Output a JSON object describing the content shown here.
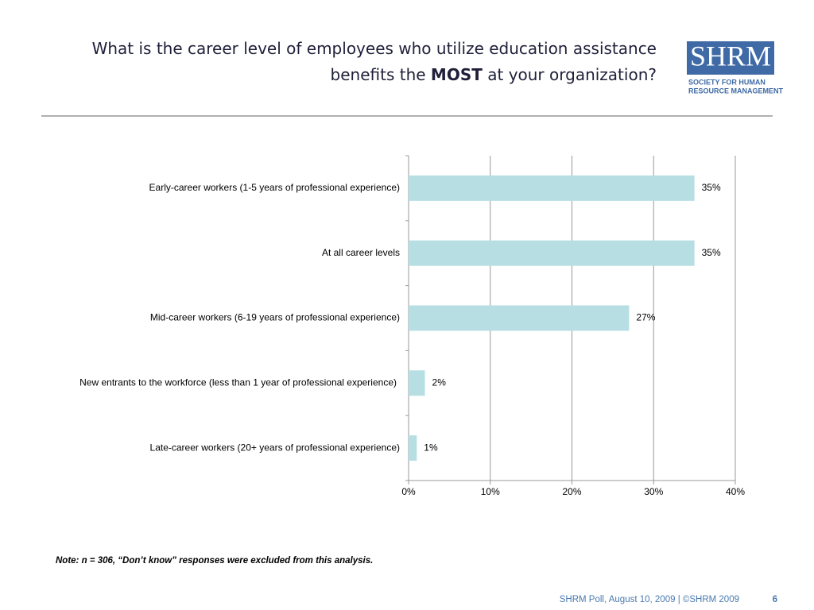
{
  "header": {
    "title_lines": [
      [
        {
          "text": "What is the career level of employees who utilize education assistance",
          "bold": false
        }
      ],
      [
        {
          "text": "benefits the ",
          "bold": false
        },
        {
          "text": "MOST",
          "bold": true
        },
        {
          "text": " at your organization?",
          "bold": false
        }
      ]
    ]
  },
  "logo": {
    "mark": "SHRM",
    "lines": [
      "SOCIETY FOR HUMAN",
      "RESOURCE MANAGEMENT"
    ]
  },
  "chart_data": {
    "type": "hbar",
    "categories": [
      "Early-career workers (1-5 years of professional experience)",
      "At all career levels",
      "Mid-career workers (6-19 years of professional experience)",
      "New entrants to the workforce (less than 1 year of professional experience)",
      "Late-career workers (20+ years of professional experience)"
    ],
    "values": [
      35,
      35,
      27,
      2,
      1
    ],
    "value_labels": [
      "35%",
      "35%",
      "27%",
      "2%",
      "1%"
    ],
    "color": "#b7dfe3",
    "xlim": [
      0,
      40
    ],
    "xticks": [
      {
        "value": 0,
        "label": "0%"
      },
      {
        "value": 10,
        "label": "10%"
      },
      {
        "value": 20,
        "label": "20%"
      },
      {
        "value": 30,
        "label": "30%"
      },
      {
        "value": 40,
        "label": "40%"
      }
    ],
    "grid": true
  },
  "note": "Note:  n = 306, “Don’t know” responses were excluded from this analysis.",
  "footer": {
    "source": "SHRM Poll, August 10, 2009 | ©SHRM 2009",
    "page": "6"
  }
}
